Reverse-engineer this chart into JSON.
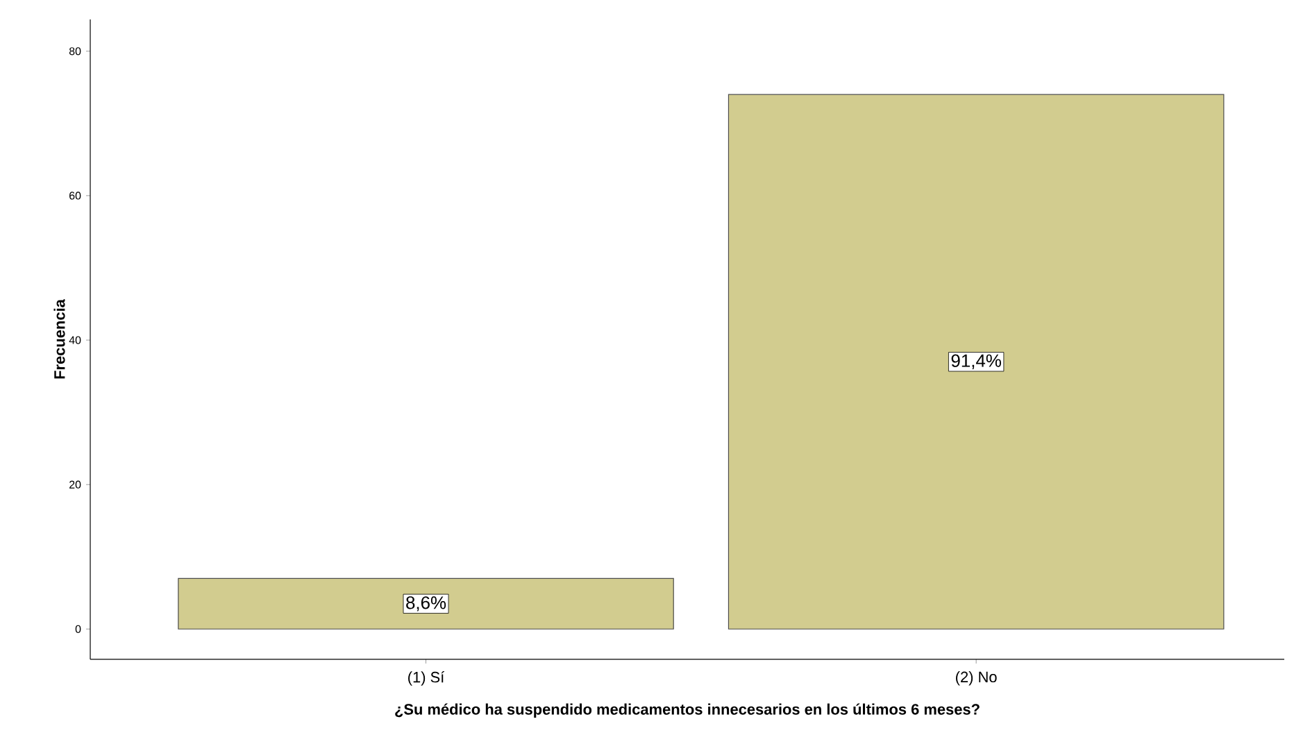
{
  "chart_data": {
    "type": "bar",
    "xlabel": "¿Su médico ha suspendido medicamentos innecesarios en los últimos 6 meses?",
    "ylabel": "Frecuencia",
    "categories": [
      "(1) Sí",
      "(2) No"
    ],
    "values": [
      7,
      74
    ],
    "annotations": [
      {
        "text": "8,6%",
        "x": "(1) Sí",
        "y": 3.5
      },
      {
        "text": "91,4%",
        "x": "(2) No",
        "y": 37
      }
    ],
    "color": "#d2cc8f",
    "ylim": [
      -4.2,
      84.4
    ],
    "yticks": [
      0,
      20,
      40,
      60,
      80
    ],
    "grid": false
  }
}
